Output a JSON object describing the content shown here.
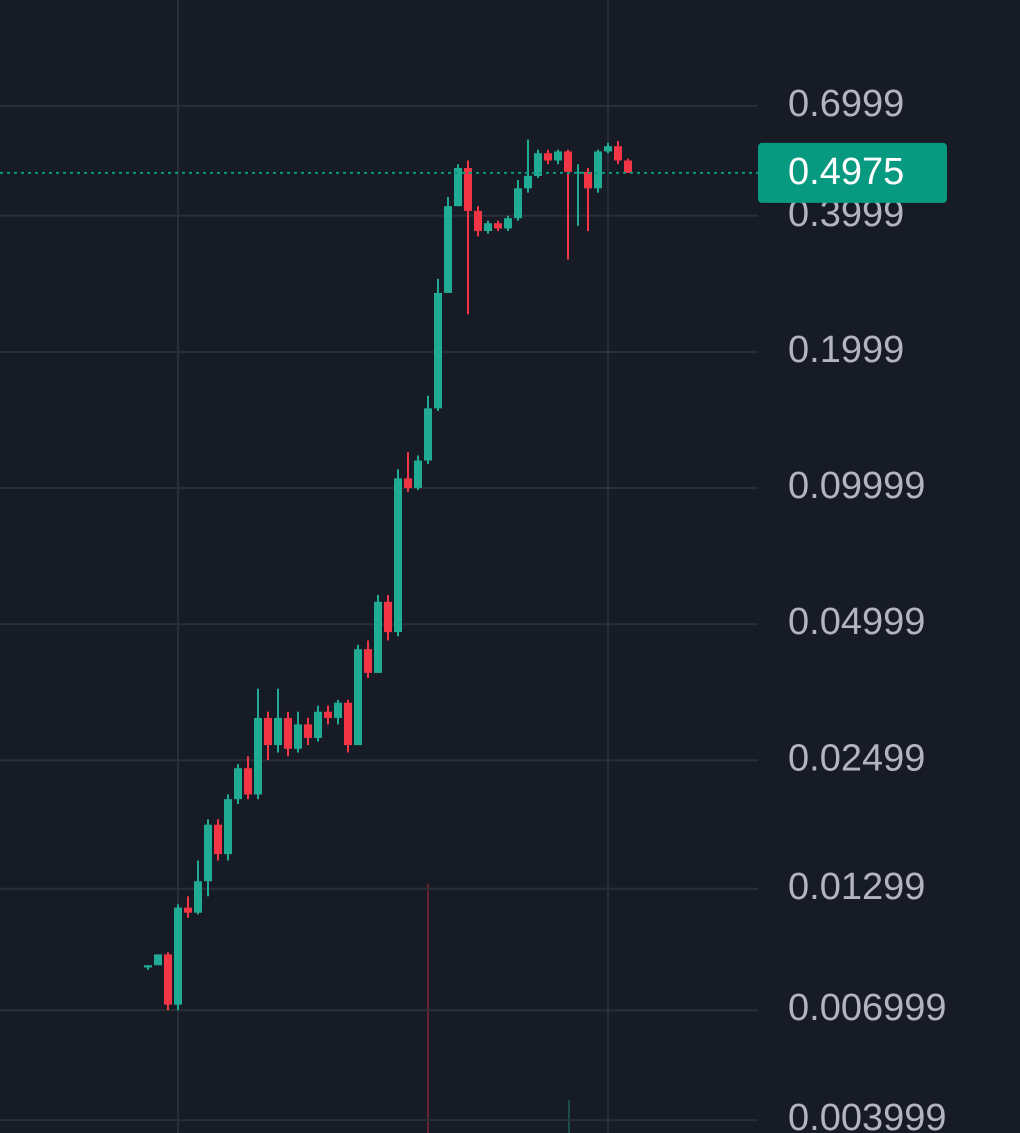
{
  "chart_data": {
    "type": "candlestick",
    "log_scale": true,
    "grid": true,
    "up_color": "#22ab94",
    "down_color": "#f23645",
    "ylim": [
      0.003745,
      1.2
    ],
    "yticks": [
      0.6999,
      0.3999,
      0.1999,
      0.09999,
      0.04999,
      0.02499,
      0.01299,
      0.006999,
      0.003999
    ],
    "last_price": 0.4975,
    "last_price_color": "#089981",
    "open": [
      0.0087,
      0.0088,
      0.0093,
      0.0072,
      0.0118,
      0.0115,
      0.0135,
      0.018,
      0.0155,
      0.0205,
      0.024,
      0.021,
      0.031,
      0.027,
      0.031,
      0.0265,
      0.03,
      0.028,
      0.032,
      0.031,
      0.0335,
      0.027,
      0.044,
      0.039,
      0.056,
      0.048,
      0.105,
      0.1,
      0.115,
      0.15,
      0.27,
      0.42,
      0.51,
      0.41,
      0.37,
      0.385,
      0.375,
      0.395,
      0.46,
      0.49,
      0.55,
      0.53,
      0.555,
      0.5,
      0.5,
      0.46,
      0.555,
      0.57,
      0.53
    ],
    "high": [
      0.0088,
      0.0093,
      0.0094,
      0.012,
      0.0125,
      0.015,
      0.0185,
      0.0185,
      0.021,
      0.0245,
      0.0255,
      0.036,
      0.032,
      0.036,
      0.032,
      0.032,
      0.031,
      0.033,
      0.033,
      0.034,
      0.034,
      0.045,
      0.046,
      0.058,
      0.058,
      0.11,
      0.12,
      0.118,
      0.16,
      0.29,
      0.44,
      0.52,
      0.53,
      0.42,
      0.39,
      0.39,
      0.4,
      0.48,
      0.59,
      0.56,
      0.56,
      0.56,
      0.56,
      0.52,
      0.51,
      0.56,
      0.58,
      0.585,
      0.535
    ],
    "low": [
      0.0086,
      0.0088,
      0.007,
      0.007,
      0.0112,
      0.0114,
      0.0125,
      0.015,
      0.015,
      0.02,
      0.0205,
      0.0205,
      0.025,
      0.026,
      0.0255,
      0.026,
      0.027,
      0.0275,
      0.03,
      0.03,
      0.026,
      0.027,
      0.038,
      0.039,
      0.046,
      0.047,
      0.098,
      0.099,
      0.113,
      0.148,
      0.27,
      0.42,
      0.242,
      0.36,
      0.365,
      0.37,
      0.37,
      0.39,
      0.45,
      0.485,
      0.52,
      0.52,
      0.32,
      0.38,
      0.37,
      0.45,
      0.55,
      0.52,
      0.4975
    ],
    "close": [
      0.0088,
      0.0093,
      0.0072,
      0.0118,
      0.0115,
      0.0135,
      0.018,
      0.0155,
      0.0205,
      0.024,
      0.021,
      0.031,
      0.027,
      0.031,
      0.0265,
      0.03,
      0.028,
      0.032,
      0.031,
      0.0335,
      0.027,
      0.044,
      0.039,
      0.056,
      0.048,
      0.105,
      0.1,
      0.115,
      0.15,
      0.27,
      0.42,
      0.51,
      0.41,
      0.37,
      0.385,
      0.375,
      0.395,
      0.46,
      0.49,
      0.55,
      0.53,
      0.555,
      0.5,
      0.5,
      0.46,
      0.555,
      0.57,
      0.53,
      0.4975
    ]
  }
}
